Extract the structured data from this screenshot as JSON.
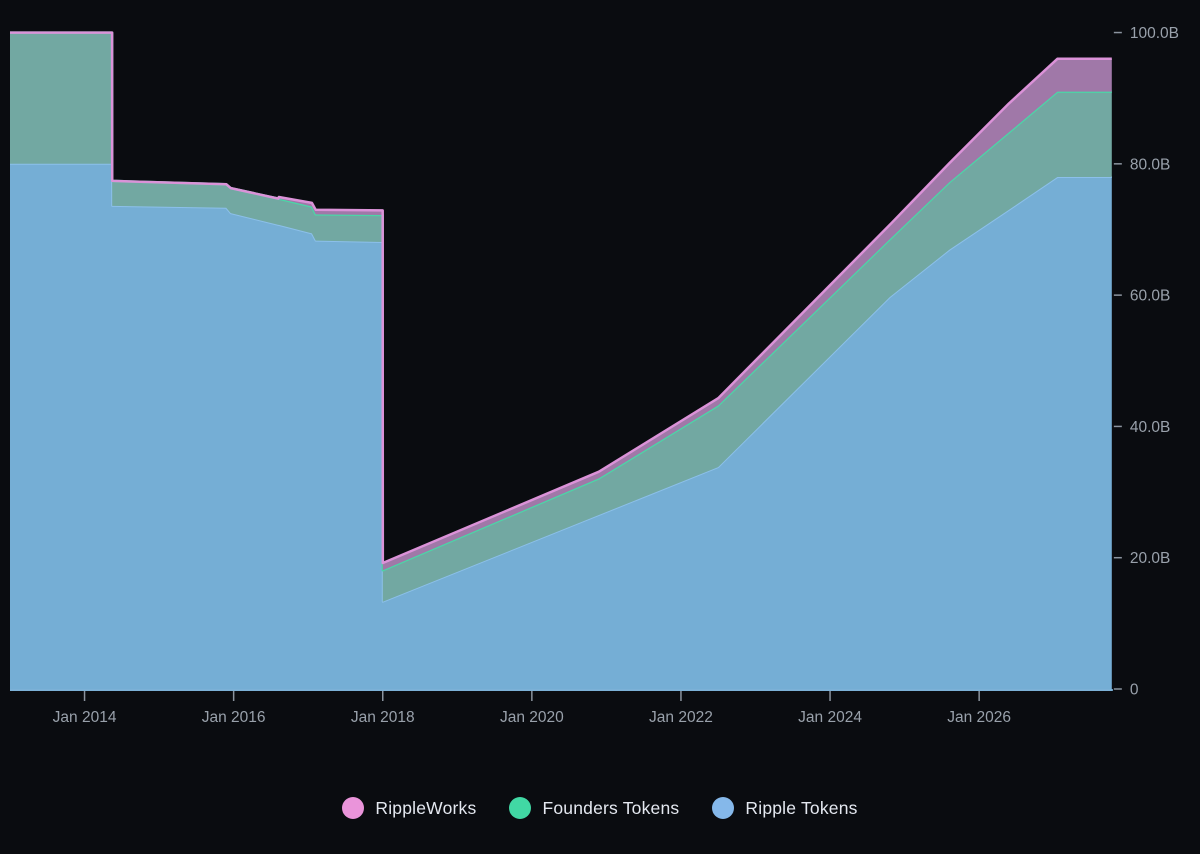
{
  "chart_data": {
    "type": "area",
    "stacked": true,
    "title": "",
    "x_axis": {
      "unit": "date",
      "range_years": [
        2013.0,
        2027.78
      ],
      "ticks": [
        {
          "year": 2014,
          "label": "Jan 2014"
        },
        {
          "year": 2016,
          "label": "Jan 2016"
        },
        {
          "year": 2018,
          "label": "Jan 2018"
        },
        {
          "year": 2020,
          "label": "Jan 2020"
        },
        {
          "year": 2022,
          "label": "Jan 2022"
        },
        {
          "year": 2024,
          "label": "Jan 2024"
        },
        {
          "year": 2026,
          "label": "Jan 2026"
        }
      ]
    },
    "y_axis": {
      "unit": "tokens (billions)",
      "range": [
        0,
        100
      ],
      "side": "right",
      "ticks": [
        {
          "value": 0,
          "label": "0"
        },
        {
          "value": 20,
          "label": "20.0B"
        },
        {
          "value": 40,
          "label": "40.0B"
        },
        {
          "value": 60,
          "label": "60.0B"
        },
        {
          "value": 80,
          "label": "80.0B"
        },
        {
          "value": 100,
          "label": "100.0B"
        }
      ]
    },
    "grid": false,
    "x_grid_years": [
      2013.0,
      2014.37,
      2014.3705,
      2015.9,
      2015.96,
      2016.6,
      2016.605,
      2017.05,
      2017.1,
      2017.9995,
      2018.0,
      2020.9,
      2022.5,
      2024.8,
      2025.6,
      2026.4,
      2027.05,
      2027.78
    ],
    "series": [
      {
        "id": "ripple-tokens",
        "name": "Ripple Tokens",
        "fill": "#75aed5",
        "edge": "#8cc0ea",
        "edge_width": 2,
        "values": [
          80,
          80,
          73.6,
          73.3,
          72.5,
          70.7,
          70.7,
          69.4,
          68.3,
          68.1,
          13.3,
          26.5,
          33.8,
          59.7,
          66.9,
          73.0,
          78,
          78
        ]
      },
      {
        "id": "founders-tokens",
        "name": "Founders Tokens",
        "fill": "#72a8a2",
        "edge": "#4bd6a7",
        "edge_width": 2.5,
        "values": [
          20,
          20,
          3.8,
          3.6,
          3.8,
          4.0,
          4.0,
          4.1,
          4.0,
          4.1,
          4.8,
          5.6,
          9.4,
          8.8,
          10.3,
          11.8,
          13,
          13
        ]
      },
      {
        "id": "rippleworks",
        "name": "RippleWorks",
        "fill": "#a078a8",
        "edge": "#db92d8",
        "edge_width": 2.5,
        "values": [
          0,
          0,
          0,
          0,
          0,
          0,
          0.25,
          0.55,
          0.7,
          0.7,
          1.1,
          1.0,
          1.1,
          2.2,
          2.9,
          4.4,
          5.0,
          5.0
        ]
      }
    ],
    "legend": [
      {
        "label": "RippleWorks",
        "color": "#ea94da",
        "series_id": "rippleworks"
      },
      {
        "label": "Founders Tokens",
        "color": "#41d8a4",
        "series_id": "founders-tokens"
      },
      {
        "label": "Ripple Tokens",
        "color": "#85b8ea",
        "series_id": "ripple-tokens"
      }
    ],
    "colors": {
      "background": "#0a0c10",
      "axis_line": "#7cb1d7",
      "tick": "#8b949f",
      "tick_label": "#99a1ab"
    }
  }
}
